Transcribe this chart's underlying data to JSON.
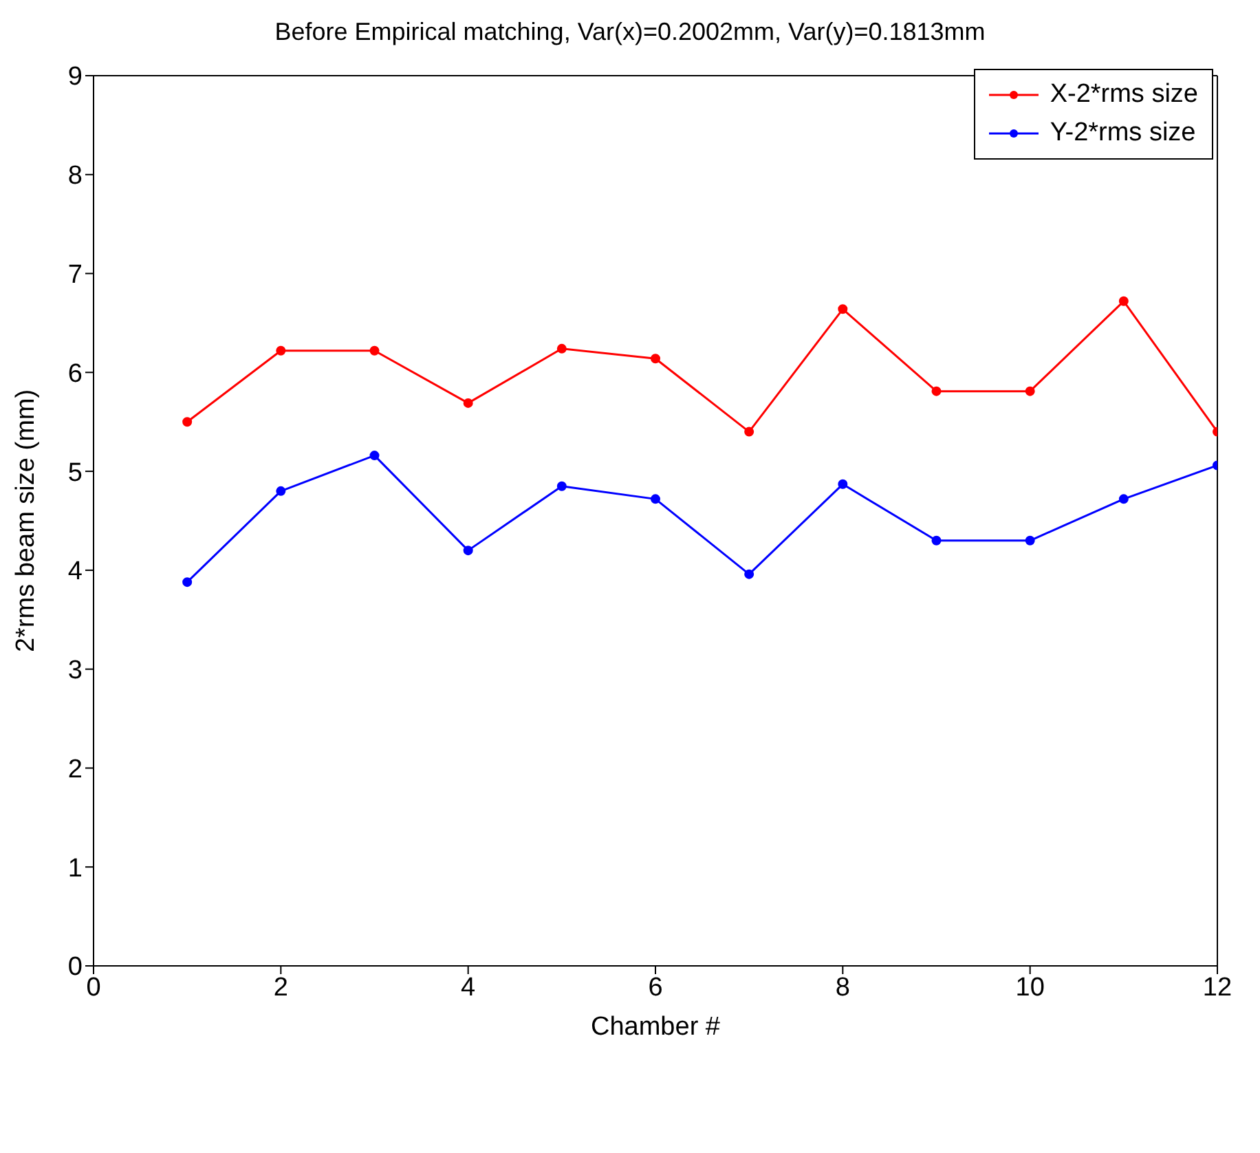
{
  "chart_data": {
    "type": "line",
    "title": "Before Empirical matching, Var(x)=0.2002mm, Var(y)=0.1813mm",
    "xlabel": "Chamber #",
    "ylabel": "2*rms beam size (mm)",
    "x": [
      1,
      2,
      3,
      4,
      5,
      6,
      7,
      8,
      9,
      10,
      11,
      12
    ],
    "series": [
      {
        "name": "X-2*rms size",
        "color": "#ff0000",
        "values": [
          5.5,
          6.22,
          6.22,
          5.69,
          6.24,
          6.14,
          5.4,
          6.64,
          5.81,
          5.81,
          6.72,
          5.4
        ]
      },
      {
        "name": "Y-2*rms size",
        "color": "#0000ff",
        "values": [
          3.88,
          4.8,
          5.16,
          4.2,
          4.85,
          4.72,
          3.96,
          4.87,
          4.3,
          4.3,
          4.72,
          5.06
        ]
      }
    ],
    "xlim": [
      0,
      12
    ],
    "xticks": [
      0,
      2,
      4,
      6,
      8,
      10,
      12
    ],
    "ylim": [
      0,
      9
    ],
    "yticks": [
      0,
      1,
      2,
      3,
      4,
      5,
      6,
      7,
      8,
      9
    ],
    "legend": "top right",
    "marker": "circle",
    "line_style": "solid"
  }
}
